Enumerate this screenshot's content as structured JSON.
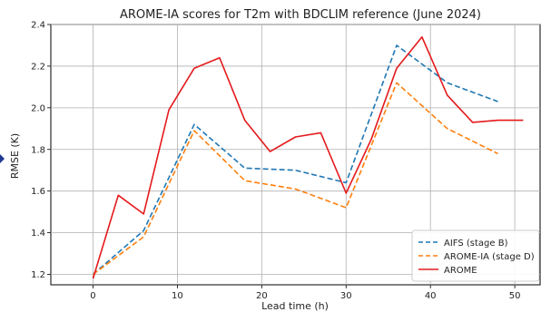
{
  "chart_data": {
    "type": "line",
    "title": "AROME-IA scores for T2m with BDCLIM reference (June 2024)",
    "xlabel": "Lead time (h)",
    "ylabel": "RMSE (K)",
    "xlim": [
      -5,
      53
    ],
    "ylim": [
      1.15,
      2.4
    ],
    "xticks": [
      0,
      10,
      20,
      30,
      40,
      50
    ],
    "yticks": [
      1.2,
      1.4,
      1.6,
      1.8,
      2.0,
      2.2,
      2.4
    ],
    "xtick_labels": [
      "0",
      "10",
      "20",
      "30",
      "40",
      "50"
    ],
    "ytick_labels": [
      "1.2",
      "1.4",
      "1.6",
      "1.8",
      "2.0",
      "2.2",
      "2.4"
    ],
    "grid": true,
    "legend_position": "lower-right",
    "series": [
      {
        "name": "AIFS (stage B)",
        "color": "#1f77b4",
        "style": "dashed",
        "x": [
          0,
          6,
          12,
          18,
          24,
          30,
          36,
          42,
          48
        ],
        "y": [
          1.2,
          1.41,
          1.92,
          1.71,
          1.7,
          1.64,
          2.3,
          2.12,
          2.03
        ]
      },
      {
        "name": "AROME-IA (stage D)",
        "color": "#ff7f0e",
        "style": "dashed",
        "x": [
          0,
          6,
          12,
          18,
          24,
          30,
          36,
          42,
          48
        ],
        "y": [
          1.2,
          1.38,
          1.89,
          1.65,
          1.61,
          1.52,
          2.12,
          1.9,
          1.78
        ]
      },
      {
        "name": "AROME",
        "color": "#e41a1c",
        "style": "solid",
        "x": [
          0,
          3,
          6,
          9,
          12,
          15,
          18,
          21,
          24,
          27,
          30,
          33,
          36,
          39,
          42,
          45,
          48,
          51
        ],
        "y": [
          1.18,
          1.58,
          1.49,
          1.99,
          2.19,
          2.24,
          1.94,
          1.79,
          1.86,
          1.88,
          1.59,
          1.85,
          2.19,
          2.34,
          2.06,
          1.93,
          1.94,
          1.94
        ]
      }
    ]
  }
}
